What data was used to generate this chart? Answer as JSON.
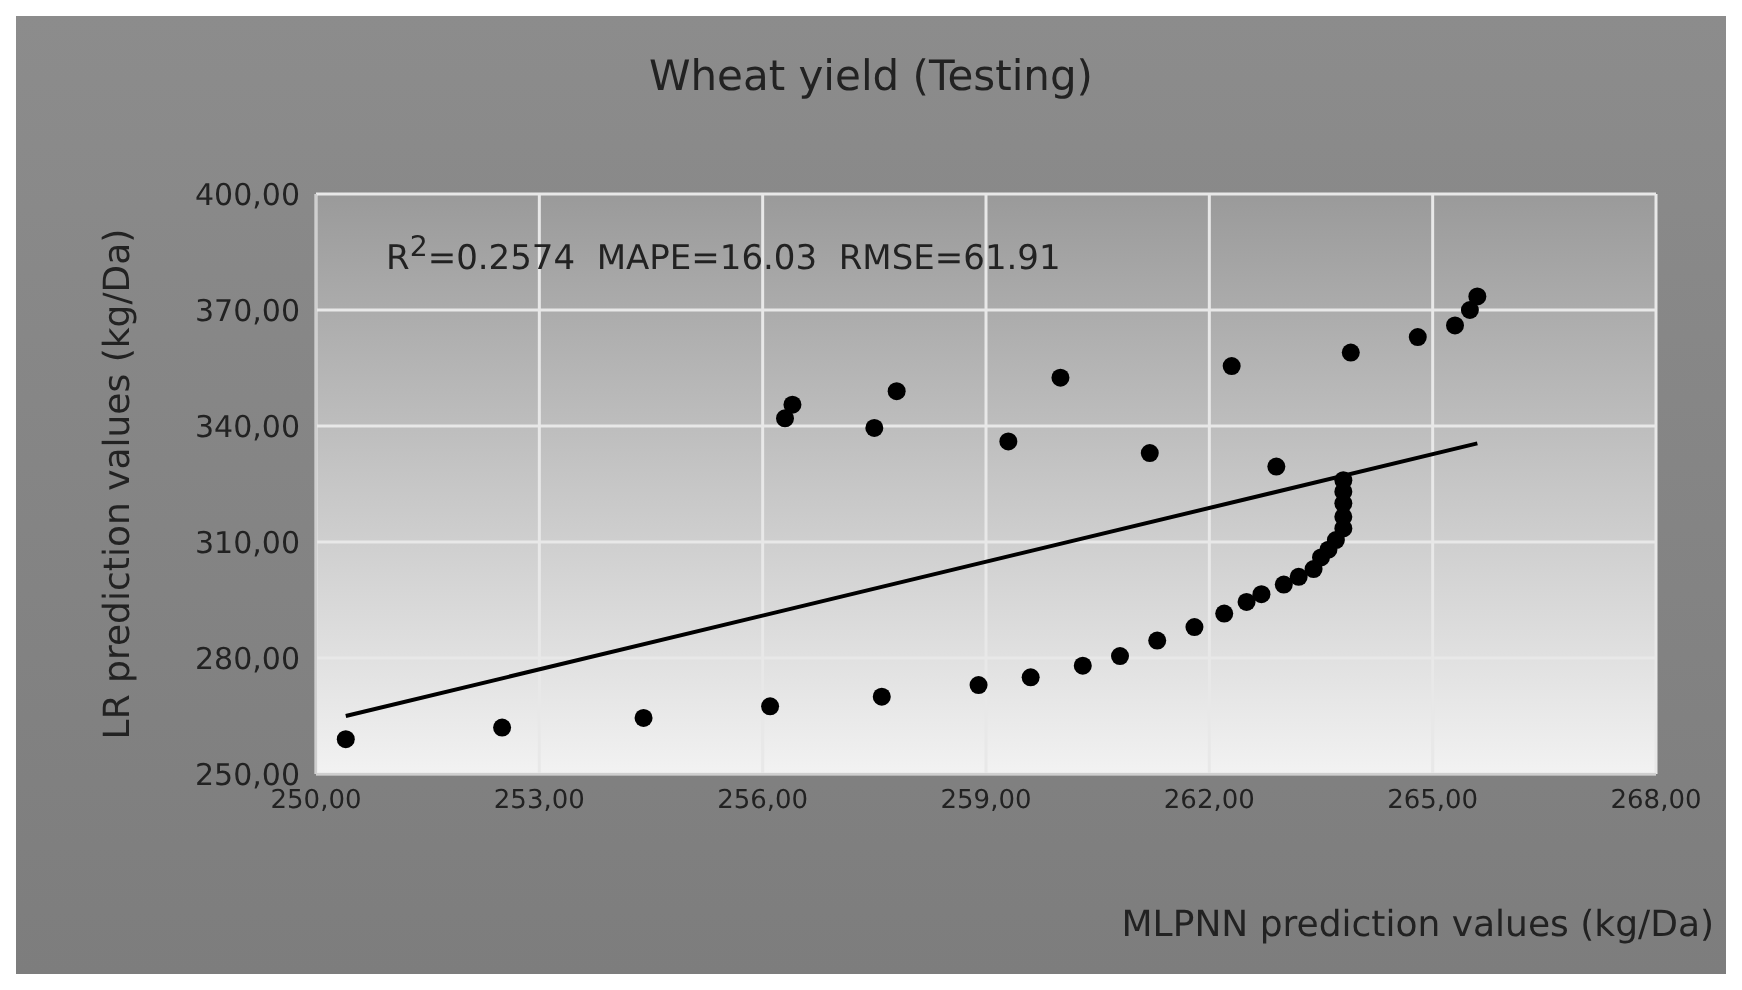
{
  "chart_data": {
    "type": "scatter",
    "title": "Wheat yield (Testing)",
    "xlabel": "MLPNN prediction values (kg/Da)",
    "ylabel": "LR prediction values (kg/Da)",
    "annotations": [
      "R$^{2}$=0.2574  MAPE=16.03  RMSE=61.91"
    ],
    "xlim": [
      250,
      268
    ],
    "xticks": [
      {
        "value": 250,
        "label": "250,00"
      },
      {
        "value": 253,
        "label": "253,00"
      },
      {
        "value": 256,
        "label": "256,00"
      },
      {
        "value": 259,
        "label": "259,00"
      },
      {
        "value": 262,
        "label": "262,00"
      },
      {
        "value": 265,
        "label": "265,00"
      },
      {
        "value": 268,
        "label": "268,00"
      }
    ],
    "ylim": [
      250,
      400
    ],
    "yticks": [
      {
        "value": 250,
        "label": "250,00"
      },
      {
        "value": 280,
        "label": "280,00"
      },
      {
        "value": 310,
        "label": "310,00"
      },
      {
        "value": 340,
        "label": "340,00"
      },
      {
        "value": 370,
        "label": "370,00"
      },
      {
        "value": 400,
        "label": "400,00"
      }
    ],
    "grid": true,
    "marker": "circle",
    "series": [
      {
        "color": "#000000",
        "x": [
          250.4,
          252.5,
          254.4,
          256.1,
          257.6,
          258.9,
          259.6,
          260.3,
          260.8,
          261.3,
          261.8,
          262.2,
          262.5,
          262.7,
          263.0,
          263.2,
          263.4,
          263.5,
          263.6,
          263.7,
          263.8,
          263.8,
          263.8,
          263.8,
          263.8,
          256.3,
          256.4,
          257.5,
          257.8,
          259.3,
          260.0,
          261.2,
          262.3,
          262.9,
          263.9,
          264.8,
          265.3,
          265.5,
          265.6
        ],
        "values": [
          259,
          262,
          264.5,
          267.5,
          270,
          273,
          275,
          278,
          280.5,
          284.5,
          288,
          291.5,
          294.5,
          296.5,
          299,
          301,
          303,
          306,
          308,
          310.5,
          313.5,
          316.5,
          320,
          323,
          326,
          342,
          345.5,
          339.5,
          349,
          336,
          352.5,
          333,
          355.5,
          329.5,
          359,
          363,
          366,
          370,
          373.5
        ]
      },
      {
        "type": "line",
        "color": "#000000",
        "marker": "none",
        "x": [
          250.4,
          265.6
        ],
        "values": [
          265,
          335.5
        ]
      }
    ]
  }
}
